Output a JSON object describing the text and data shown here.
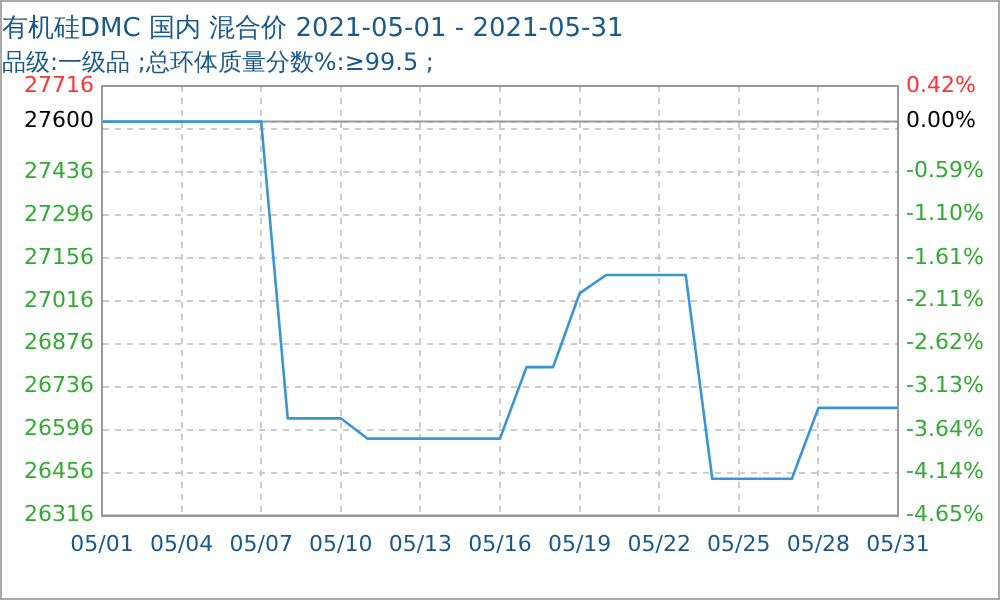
{
  "chart_data": {
    "type": "line",
    "title": "有机硅DMC 国内 混合价 2021-05-01 - 2021-05-31",
    "subtitle": "品级:一级品 ;总环体质量分数%:≥99.5 ;",
    "x": [
      "2021-05-01",
      "2021-05-02",
      "2021-05-03",
      "2021-05-04",
      "2021-05-05",
      "2021-05-06",
      "2021-05-07",
      "2021-05-08",
      "2021-05-09",
      "2021-05-10",
      "2021-05-11",
      "2021-05-12",
      "2021-05-13",
      "2021-05-14",
      "2021-05-15",
      "2021-05-16",
      "2021-05-17",
      "2021-05-18",
      "2021-05-19",
      "2021-05-20",
      "2021-05-21",
      "2021-05-22",
      "2021-05-23",
      "2021-05-24",
      "2021-05-25",
      "2021-05-26",
      "2021-05-27",
      "2021-05-28",
      "2021-05-29",
      "2021-05-30",
      "2021-05-31"
    ],
    "series": [
      {
        "color": "#3a95d4",
        "values": [
          27600,
          27600,
          27600,
          27600,
          27600,
          27600,
          27600,
          26633,
          26633,
          26633,
          26567,
          26567,
          26567,
          26567,
          26567,
          26567,
          26800,
          26800,
          27040,
          27100,
          27100,
          27100,
          27100,
          26436,
          26436,
          26436,
          26436,
          26667,
          26667,
          26667,
          26667
        ]
      }
    ],
    "xlim": [
      "2021-05-01",
      "2021-05-31"
    ],
    "xticks": [
      {
        "value": "2021-05-01",
        "label": "05/01"
      },
      {
        "value": "2021-05-04",
        "label": "05/04"
      },
      {
        "value": "2021-05-07",
        "label": "05/07"
      },
      {
        "value": "2021-05-10",
        "label": "05/10"
      },
      {
        "value": "2021-05-13",
        "label": "05/13"
      },
      {
        "value": "2021-05-16",
        "label": "05/16"
      },
      {
        "value": "2021-05-19",
        "label": "05/19"
      },
      {
        "value": "2021-05-22",
        "label": "05/22"
      },
      {
        "value": "2021-05-25",
        "label": "05/25"
      },
      {
        "value": "2021-05-28",
        "label": "05/28"
      },
      {
        "value": "2021-05-31",
        "label": "05/31"
      }
    ],
    "ylim": [
      26316,
      27716
    ],
    "yticks": [
      26316,
      26456,
      26596,
      26736,
      26876,
      27016,
      27156,
      27296,
      27436,
      {
        "value": 27576,
        "label": null
      },
      27600,
      27716
    ],
    "y2lim": [
      -4.652,
      0.42
    ],
    "y2ticks": [
      {
        "value": -4.65,
        "label": "-4.65%"
      },
      {
        "value": -4.14,
        "label": "-4.14%"
      },
      {
        "value": -3.64,
        "label": "-3.64%"
      },
      {
        "value": -3.13,
        "label": "-3.13%"
      },
      {
        "value": -2.62,
        "label": "-2.62%"
      },
      {
        "value": -2.11,
        "label": "-2.11%"
      },
      {
        "value": -1.61,
        "label": "-1.61%"
      },
      {
        "value": -1.1,
        "label": "-1.10%"
      },
      {
        "value": -0.59,
        "label": "-0.59%"
      },
      {
        "value": 0,
        "label": "0.00%"
      },
      {
        "value": 0.42,
        "label": "0.42%"
      }
    ],
    "ref_lines": [
      {
        "axis": "y",
        "value": 27600,
        "color": "#999999"
      }
    ],
    "grid": true,
    "marker": "none",
    "line_style": "solid",
    "legend": false
  }
}
